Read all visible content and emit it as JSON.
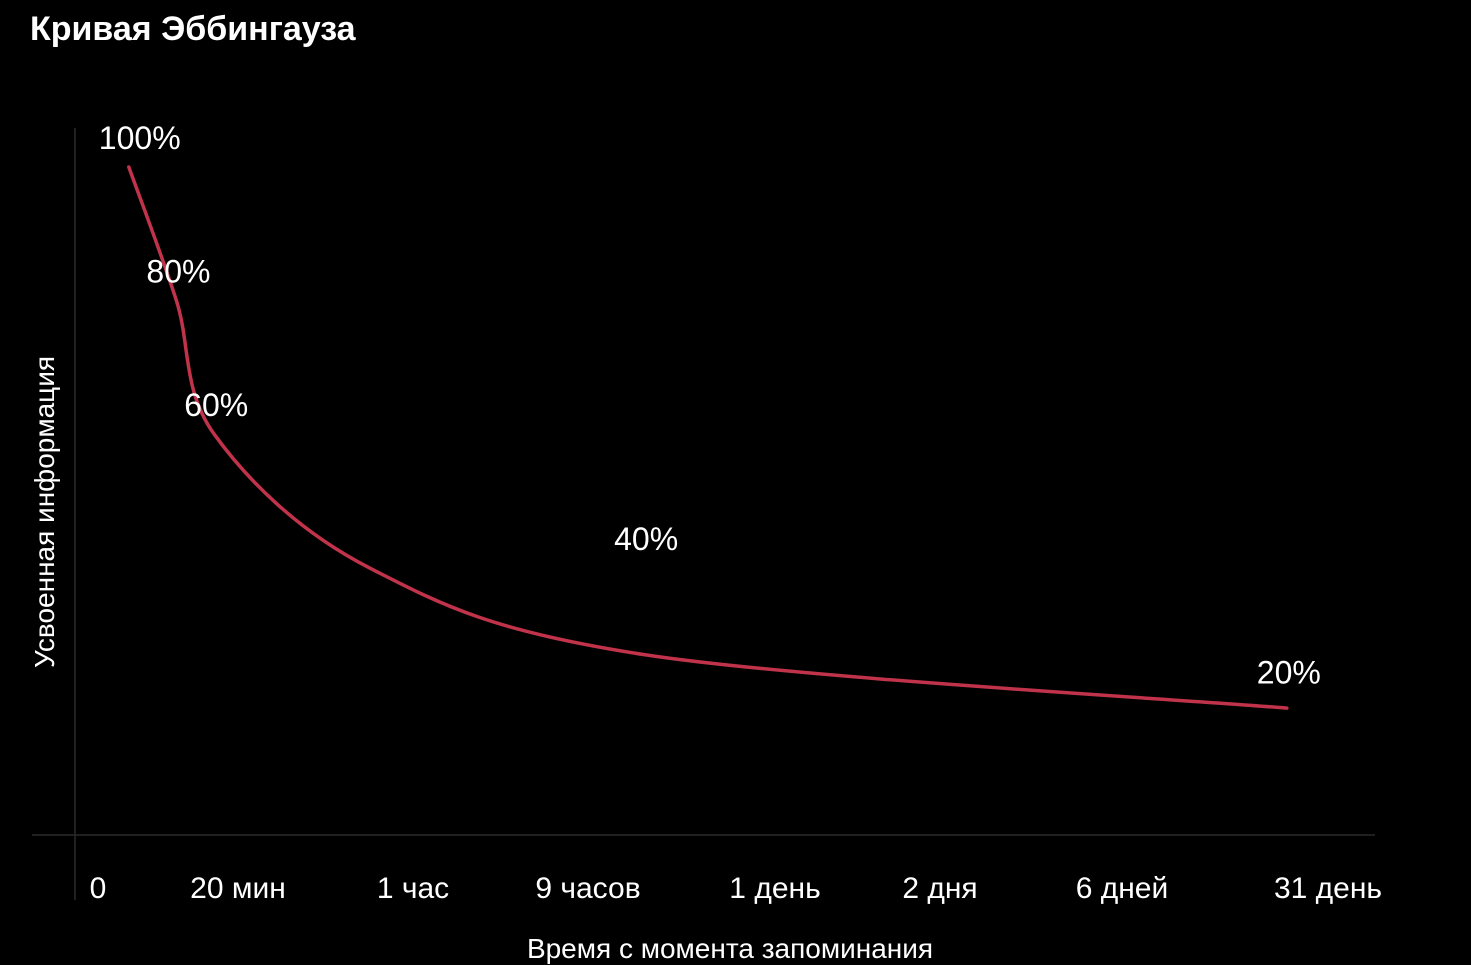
{
  "chart_data": {
    "type": "line",
    "title": "Кривая Эббингауза",
    "xlabel": "Время с момента запоминания",
    "ylabel": "Усвоенная информация",
    "categories": [
      "0",
      "20 мин",
      "1 час",
      "9 часов",
      "1 день",
      "2 дня",
      "6 дней",
      "31 день"
    ],
    "ylim": [
      0,
      100
    ],
    "grid": false,
    "series": [
      {
        "color": "#c0334a",
        "points": [
          {
            "x": 0.22,
            "y": 100
          },
          {
            "x": 0.56,
            "y": 80
          },
          {
            "x": 0.83,
            "y": 60
          },
          {
            "x": 1.75,
            "y": 40
          },
          {
            "x": 3.3,
            "y": 27
          },
          {
            "x": 6.8,
            "y": 19
          }
        ]
      }
    ],
    "annotations": [
      {
        "text": "100%",
        "x": 0.22,
        "y": 100
      },
      {
        "text": "80%",
        "x": 0.56,
        "y": 80
      },
      {
        "text": "60%",
        "x": 0.83,
        "y": 60
      },
      {
        "text": "40%",
        "x": 3.3,
        "y": 40
      },
      {
        "text": "20%",
        "x": 6.8,
        "y": 20
      }
    ]
  }
}
